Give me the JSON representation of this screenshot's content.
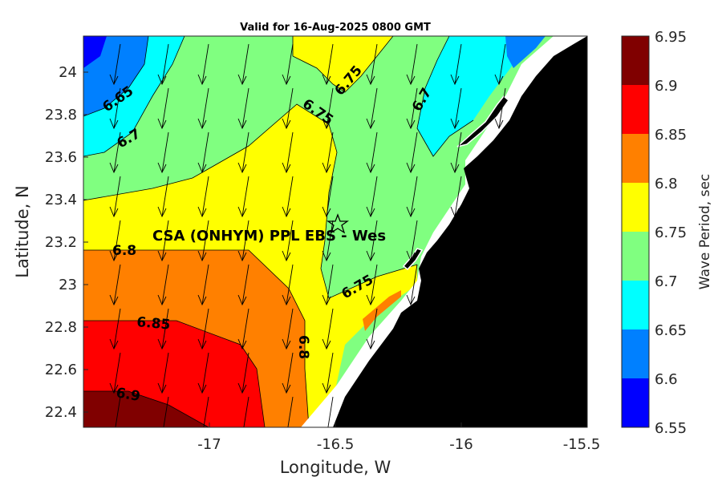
{
  "title": "Valid for 16-Aug-2025 0800 GMT",
  "xlabel": "Longitude, W",
  "ylabel": "Latitude, N",
  "colorbar_label": "Wave Period, sec",
  "x_ticks": [
    "-17",
    "-16.5",
    "-16",
    "-15.5"
  ],
  "y_ticks": [
    "24",
    "23.8",
    "23.6",
    "23.4",
    "23.2",
    "23",
    "22.8",
    "22.6",
    "22.4"
  ],
  "colorbar_ticks": [
    "6.95",
    "6.9",
    "6.85",
    "6.8",
    "6.75",
    "6.7",
    "6.65",
    "6.6",
    "6.55"
  ],
  "colorbar_colors": [
    "#800000",
    "#ff0000",
    "#ff8000",
    "#ffff00",
    "#80ff80",
    "#00ffff",
    "#0080ff",
    "#0000ff"
  ],
  "contour_labels": [
    "6.65",
    "6.7",
    "6.75",
    "6.75",
    "6.7",
    "6.8",
    "6.85",
    "6.9",
    "6.8",
    "6.75"
  ],
  "station": {
    "name": "CSA (ONHYM) PPL EBS  - Wes",
    "marker": "star-icon"
  },
  "land_color": "#000000",
  "chart_data": {
    "type": "contour",
    "xlim": [
      -17.5,
      -15.5
    ],
    "ylim": [
      22.33,
      24.16
    ],
    "levels": [
      6.55,
      6.6,
      6.65,
      6.7,
      6.75,
      6.8,
      6.85,
      6.9,
      6.95
    ],
    "colorbar_range": [
      6.55,
      6.95
    ],
    "station_location": [
      -16.5,
      23.29
    ],
    "vector_direction": "southward (arrows pointing south, slightly SSW)"
  }
}
